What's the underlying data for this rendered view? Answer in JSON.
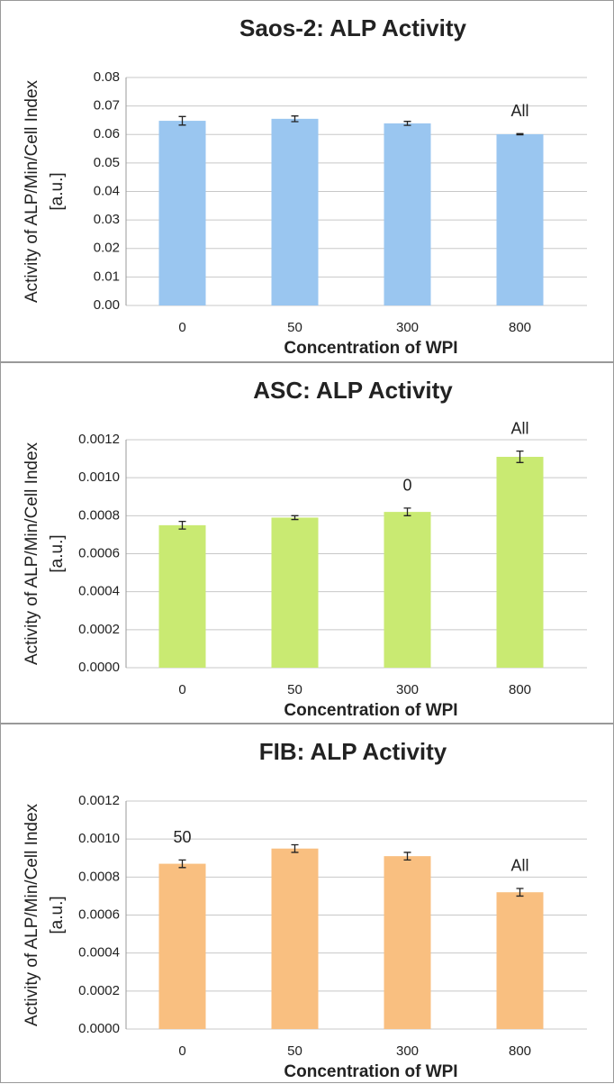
{
  "chart_data": [
    {
      "type": "bar",
      "title": "Saos-2: ALP Activity",
      "x_label": "Concentration of WPI",
      "y_label": [
        "Activity of ALP/Min/Cell Index",
        "[a.u.]"
      ],
      "categories": [
        "0",
        "50",
        "300",
        "800"
      ],
      "values": [
        0.0648,
        0.0655,
        0.0639,
        0.0601
      ],
      "errors": [
        0.0015,
        0.001,
        0.0007,
        0.0002
      ],
      "annotations": [
        null,
        null,
        null,
        "All"
      ],
      "color": "#9ac6f0",
      "ylim": [
        0,
        0.08
      ],
      "yticks": [
        {
          "value": 0,
          "label": "0.00"
        },
        0.01,
        0.02,
        0.03,
        0.04,
        0.05,
        0.06,
        0.07,
        0.08
      ],
      "grid": true
    },
    {
      "type": "bar",
      "title": "ASC: ALP Activity",
      "x_label": "Concentration of WPI",
      "y_label": [
        "Activity of ALP/Min/Cell Index",
        "[a.u.]"
      ],
      "categories": [
        "0",
        "50",
        "300",
        "800"
      ],
      "values": [
        0.00075,
        0.00079,
        0.00082,
        0.00111
      ],
      "errors": [
        2e-05,
        1e-05,
        2e-05,
        3e-05
      ],
      "annotations": [
        null,
        null,
        "0",
        "All"
      ],
      "color": "#c9ea72",
      "ylim": [
        0,
        0.0012
      ],
      "yticks": [
        {
          "value": 0,
          "label": "0.0000"
        },
        0.0002,
        0.0004,
        0.0006,
        0.0008,
        {
          "value": 0.001,
          "label": "0.0010"
        },
        0.0012
      ],
      "grid": true
    },
    {
      "type": "bar",
      "title": "FIB: ALP Activity",
      "x_label": "Concentration of WPI",
      "y_label": [
        "Activity of ALP/Min/Cell Index",
        "[a.u.]"
      ],
      "categories": [
        "0",
        "50",
        "300",
        "800"
      ],
      "values": [
        0.00087,
        0.00095,
        0.00091,
        0.00072
      ],
      "errors": [
        2e-05,
        2e-05,
        2e-05,
        2e-05
      ],
      "annotations": [
        "50",
        null,
        null,
        "All"
      ],
      "color": "#f9bf80",
      "ylim": [
        0,
        0.0012
      ],
      "yticks": [
        {
          "value": 0,
          "label": "0.0000"
        },
        0.0002,
        0.0004,
        0.0006,
        0.0008,
        {
          "value": 0.001,
          "label": "0.0010"
        },
        0.0012
      ],
      "grid": true
    }
  ]
}
